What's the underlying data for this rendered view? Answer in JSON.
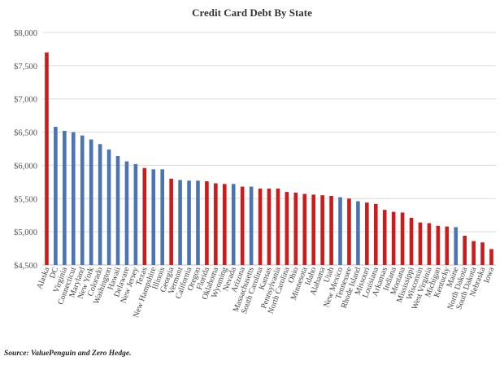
{
  "chart_data": {
    "type": "bar",
    "title": "Credit Card Debt By State",
    "xlabel": "",
    "ylabel": "",
    "ylim": [
      4500,
      8000
    ],
    "yticks": [
      "$4,500",
      "$5,000",
      "$5,500",
      "$6,000",
      "$6,500",
      "$7,000",
      "$7,500",
      "$8,000"
    ],
    "ytick_values": [
      4500,
      5000,
      5500,
      6000,
      6500,
      7000,
      7500,
      8000
    ],
    "grid": true,
    "legend": "none",
    "colors": {
      "red": "#cc1b1b",
      "blue": "#4a74b4",
      "grid": "#dcdcdc",
      "axis": "#bfbfbf"
    },
    "categories": [
      "Alaska",
      "DC",
      "Virginia",
      "Connecticut",
      "Maryland",
      "New York",
      "Colorado",
      "Washington",
      "Hawaii",
      "Delaware",
      "New Jersey",
      "Texas",
      "New Hampshire",
      "Illinois",
      "Georgia",
      "Vermont",
      "California",
      "Oregon",
      "Florida",
      "Oklahoma",
      "Wyoming",
      "Nevada",
      "Arizona",
      "Massachusetts",
      "South Carolina",
      "Kansas",
      "Pennsylvania",
      "North Carolina",
      "Ohio",
      "Minnesota",
      "Idaho",
      "Alabama",
      "Utah",
      "New Mexico",
      "Tennessee",
      "Rhode Island",
      "Missouri",
      "Louisiana",
      "Arkansas",
      "Indiana",
      "Montana",
      "Mississippi",
      "Wisconsin",
      "West Virginia",
      "Michigan",
      "Kentucky",
      "Maine",
      "North Dakota",
      "South Dakota",
      "Nebraska",
      "Iowa"
    ],
    "values": [
      7700,
      6580,
      6520,
      6500,
      6450,
      6390,
      6320,
      6240,
      6140,
      6060,
      6020,
      5960,
      5940,
      5940,
      5800,
      5780,
      5770,
      5770,
      5760,
      5730,
      5720,
      5720,
      5680,
      5680,
      5650,
      5650,
      5650,
      5600,
      5590,
      5570,
      5560,
      5550,
      5540,
      5520,
      5500,
      5460,
      5440,
      5420,
      5330,
      5300,
      5290,
      5210,
      5140,
      5130,
      5090,
      5080,
      5070,
      4940,
      4860,
      4840,
      4740
    ],
    "bar_colors": [
      "red",
      "blue",
      "blue",
      "blue",
      "blue",
      "blue",
      "blue",
      "blue",
      "blue",
      "blue",
      "blue",
      "red",
      "blue",
      "blue",
      "red",
      "blue",
      "blue",
      "blue",
      "red",
      "red",
      "red",
      "blue",
      "red",
      "blue",
      "red",
      "red",
      "red",
      "red",
      "red",
      "red",
      "red",
      "red",
      "red",
      "blue",
      "red",
      "blue",
      "red",
      "red",
      "red",
      "red",
      "red",
      "red",
      "red",
      "red",
      "red",
      "red",
      "blue",
      "red",
      "red",
      "red",
      "red"
    ]
  },
  "source": "Source: ValuePenguin and Zero Hedge."
}
